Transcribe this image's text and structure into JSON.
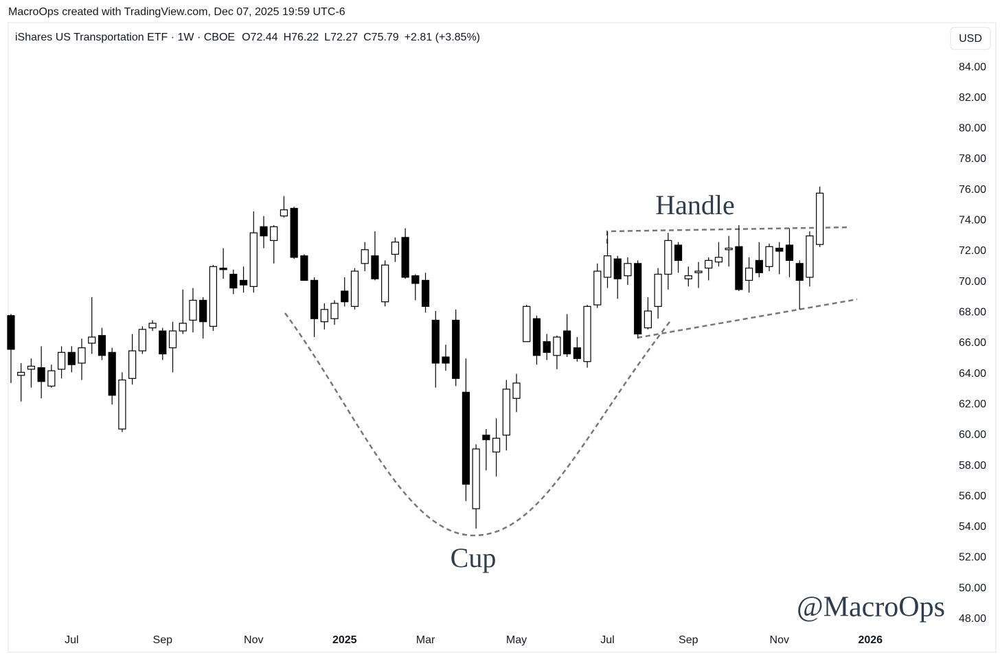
{
  "caption": "MacroOps created with TradingView.com, Dec 07, 2025 19:59 UTC-6",
  "chart_data": {
    "type": "candlestick",
    "title": "iShares US Transportation ETF · 1W · CBOE",
    "legend_values": [
      "O72.44",
      "H76.22",
      "L72.27",
      "C75.79",
      "+2.81 (+3.85%)"
    ],
    "currency": "USD",
    "annotations": [
      "Handle",
      "Cup",
      "@MacroOps"
    ],
    "x": [
      0,
      1,
      2,
      3,
      4,
      5,
      6,
      7,
      8,
      9,
      10,
      11,
      12,
      13,
      14,
      15,
      16,
      17,
      18,
      19,
      20,
      21,
      22,
      23,
      24,
      25,
      26,
      27,
      28,
      29,
      30,
      31,
      32,
      33,
      34,
      35,
      36,
      37,
      38,
      39,
      40,
      41,
      42,
      43,
      44,
      45,
      46,
      47,
      48,
      49,
      50,
      51,
      52,
      53,
      54,
      55,
      56,
      57,
      58,
      59,
      60,
      61,
      62,
      63,
      64,
      65,
      66,
      67,
      68,
      69,
      70,
      71,
      72,
      73,
      74,
      75,
      76,
      77,
      78,
      79,
      80
    ],
    "open": [
      67.8,
      63.9,
      64.3,
      64.4,
      63.2,
      64.3,
      65.4,
      64.7,
      66.0,
      66.5,
      65.4,
      60.4,
      63.7,
      65.5,
      67.0,
      66.8,
      65.7,
      66.8,
      67.5,
      68.8,
      67.1,
      70.9,
      70.5,
      70.1,
      69.7,
      73.6,
      72.7,
      74.3,
      74.8,
      71.7,
      70.1,
      67.4,
      67.6,
      69.4,
      68.4,
      71.2,
      71.7,
      68.7,
      71.8,
      72.9,
      70.4,
      70.1,
      67.5,
      65.1,
      67.5,
      62.8,
      55.2,
      60.0,
      58.9,
      60.0,
      62.4,
      66.1,
      67.6,
      66.1,
      65.2,
      66.8,
      65.7,
      64.8,
      68.5,
      70.3,
      71.5,
      70.4,
      71.2,
      67.0,
      68.4,
      70.5,
      72.4,
      70.2,
      70.6,
      70.9,
      71.3,
      72.1,
      72.3,
      70.1,
      71.4,
      71.0,
      72.2,
      72.4,
      71.2,
      70.3,
      72.44
    ],
    "high": [
      67.9,
      64.7,
      65.0,
      65.8,
      64.6,
      65.8,
      65.8,
      66.3,
      69.0,
      67.0,
      65.7,
      64.1,
      66.6,
      67.1,
      67.5,
      67.0,
      67.4,
      69.5,
      69.6,
      69.0,
      71.1,
      72.2,
      70.8,
      71.0,
      74.6,
      74.3,
      73.7,
      75.6,
      74.9,
      71.8,
      70.3,
      68.6,
      68.8,
      70.3,
      70.9,
      72.6,
      73.3,
      71.4,
      72.9,
      73.5,
      70.5,
      70.6,
      68.1,
      65.9,
      68.2,
      65.0,
      59.4,
      60.4,
      61.1,
      63.6,
      64.0,
      68.5,
      67.8,
      66.6,
      66.5,
      67.9,
      66.4,
      68.5,
      71.2,
      73.3,
      71.7,
      71.6,
      71.4,
      69.0,
      70.9,
      73.2,
      72.6,
      71.0,
      71.3,
      71.6,
      72.6,
      73.0,
      73.7,
      71.6,
      72.6,
      72.5,
      72.6,
      73.5,
      71.4,
      73.3,
      76.22
    ],
    "low": [
      63.4,
      62.2,
      63.1,
      62.4,
      63.1,
      63.7,
      64.1,
      63.6,
      65.3,
      64.9,
      62.0,
      60.2,
      63.3,
      65.3,
      66.8,
      64.9,
      64.1,
      66.6,
      66.7,
      66.3,
      66.8,
      70.2,
      69.2,
      69.3,
      69.3,
      72.2,
      71.2,
      74.2,
      71.5,
      70.1,
      66.4,
      66.9,
      67.2,
      68.4,
      68.2,
      70.7,
      70.1,
      68.4,
      71.3,
      70.2,
      68.8,
      68.0,
      63.1,
      64.2,
      63.2,
      55.7,
      53.9,
      57.7,
      57.3,
      59.0,
      61.5,
      66.1,
      64.6,
      64.9,
      64.3,
      65.1,
      64.8,
      64.4,
      68.3,
      69.6,
      68.9,
      69.8,
      66.3,
      66.9,
      67.6,
      69.5,
      70.6,
      69.7,
      69.6,
      70.1,
      71.0,
      71.0,
      69.4,
      69.3,
      70.3,
      70.7,
      70.5,
      70.3,
      68.2,
      69.7,
      72.27
    ],
    "close": [
      65.6,
      64.1,
      64.5,
      63.5,
      64.2,
      65.4,
      64.6,
      65.7,
      66.4,
      65.2,
      62.6,
      63.6,
      65.5,
      66.9,
      67.3,
      65.3,
      66.8,
      67.3,
      68.8,
      67.4,
      71.0,
      70.8,
      69.6,
      69.8,
      73.2,
      73.0,
      73.6,
      74.7,
      71.6,
      70.1,
      67.6,
      68.2,
      68.6,
      68.7,
      70.7,
      72.1,
      70.2,
      71.1,
      72.6,
      70.3,
      69.9,
      68.4,
      64.7,
      64.7,
      63.7,
      56.8,
      59.1,
      59.7,
      59.8,
      63.0,
      63.4,
      68.4,
      65.2,
      65.4,
      66.4,
      65.3,
      65.0,
      68.4,
      70.7,
      71.7,
      70.2,
      71.2,
      66.6,
      68.1,
      70.5,
      72.7,
      71.4,
      70.4,
      70.7,
      71.4,
      71.6,
      72.2,
      69.5,
      70.9,
      70.6,
      72.3,
      72.0,
      71.4,
      70.1,
      73.0,
      75.79
    ],
    "up_color": "#ffffff",
    "down_color": "#000000",
    "wick_color": "#000000",
    "xlim": [
      -0.27,
      92.66
    ],
    "xticks": [
      {
        "value": 6,
        "label": "Jul"
      },
      {
        "value": 15,
        "label": "Sep"
      },
      {
        "value": 24,
        "label": "Nov"
      },
      {
        "value": 33,
        "label": "2025"
      },
      {
        "value": 41,
        "label": "Mar"
      },
      {
        "value": 50,
        "label": "May"
      },
      {
        "value": 59,
        "label": "Jul"
      },
      {
        "value": 67,
        "label": "Sep"
      },
      {
        "value": 76,
        "label": "Nov"
      },
      {
        "value": 85,
        "label": "2026"
      }
    ],
    "ylim": [
      47.41,
      86.6
    ],
    "yticks": [
      {
        "value": 48,
        "label": "48.00"
      },
      {
        "value": 50,
        "label": "50.00"
      },
      {
        "value": 52,
        "label": "52.00"
      },
      {
        "value": 54,
        "label": "54.00"
      },
      {
        "value": 56,
        "label": "56.00"
      },
      {
        "value": 58,
        "label": "58.00"
      },
      {
        "value": 60,
        "label": "60.00"
      },
      {
        "value": 62,
        "label": "62.00"
      },
      {
        "value": 64,
        "label": "64.00"
      },
      {
        "value": 66,
        "label": "66.00"
      },
      {
        "value": 68,
        "label": "68.00"
      },
      {
        "value": 70,
        "label": "70.00"
      },
      {
        "value": 72,
        "label": "72.00"
      },
      {
        "value": 74,
        "label": "74.00"
      },
      {
        "value": 76,
        "label": "76.00"
      },
      {
        "value": 78,
        "label": "78.00"
      },
      {
        "value": 80,
        "label": "80.00"
      },
      {
        "value": 82,
        "label": "82.00"
      },
      {
        "value": 84,
        "label": "84.00"
      }
    ],
    "grid": false
  }
}
